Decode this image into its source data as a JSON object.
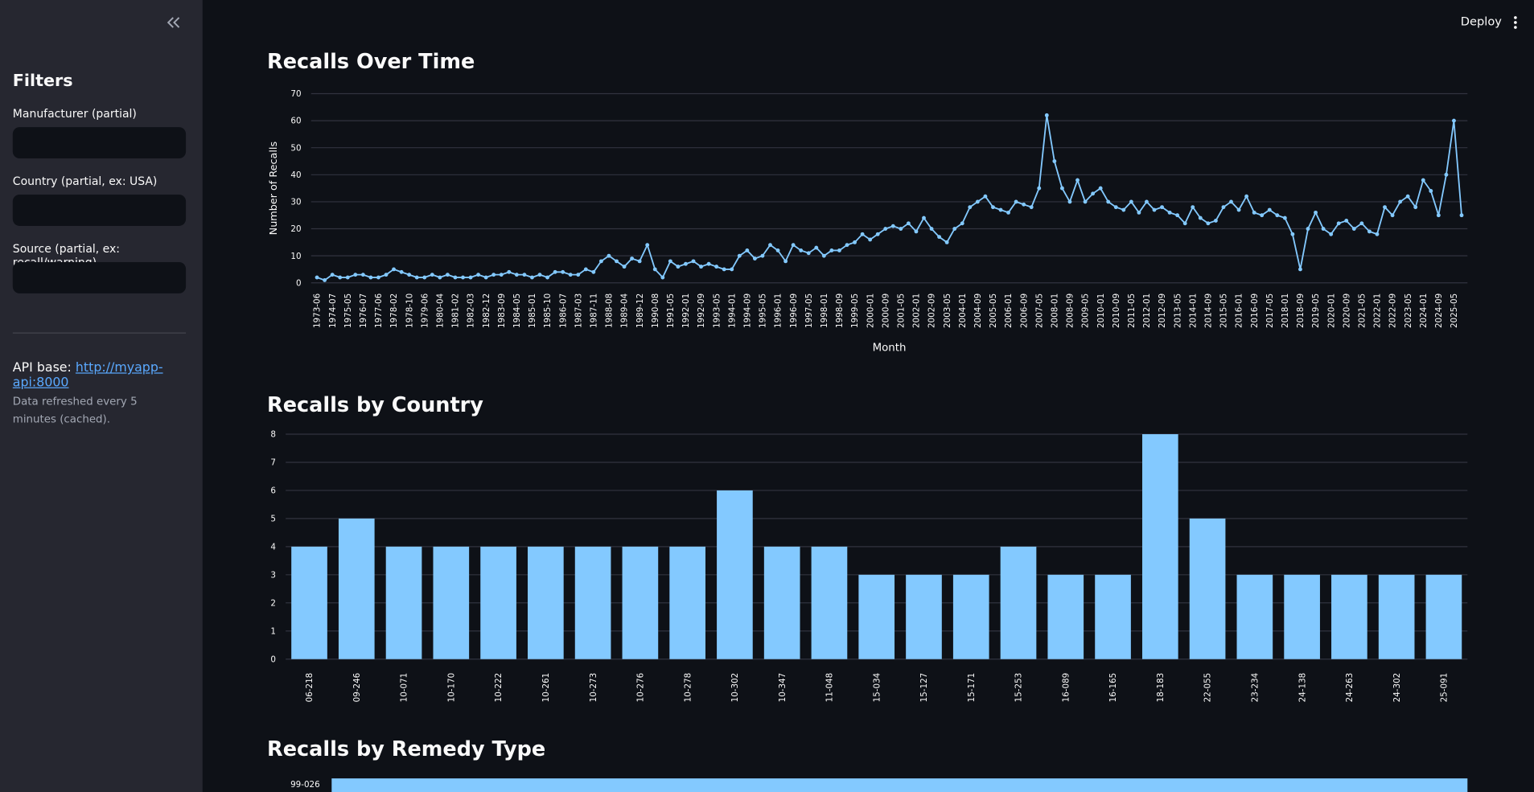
{
  "header": {
    "deploy": "Deploy"
  },
  "sidebar": {
    "title": "Filters",
    "filters": [
      "Manufacturer (partial)",
      "Country (partial, ex: USA)",
      "Source (partial, ex: recall/warning)"
    ],
    "api_label": "API base:",
    "api_url": "http://myapp-api:8000",
    "note": "Data refreshed every 5 minutes (cached)."
  },
  "chart_data": [
    {
      "type": "line",
      "title": "Recalls Over Time",
      "x_label": "Month",
      "y_label": "Number of Recalls",
      "color": "#83c9ff",
      "grid": true,
      "categories": [
        "1973-06",
        null,
        "1974-07",
        null,
        "1975-05",
        null,
        "1976-07",
        null,
        "1977-06",
        null,
        "1978-02",
        null,
        "1978-10",
        null,
        "1979-06",
        null,
        "1980-04",
        null,
        "1981-02",
        null,
        "1982-03",
        null,
        "1982-12",
        null,
        "1983-09",
        null,
        "1984-05",
        null,
        "1985-01",
        null,
        "1985-10",
        null,
        "1986-07",
        null,
        "1987-03",
        null,
        "1987-11",
        null,
        "1988-08",
        null,
        "1989-04",
        null,
        "1989-12",
        null,
        "1990-08",
        null,
        "1991-05",
        null,
        "1992-01",
        null,
        "1992-09",
        null,
        "1993-05",
        null,
        "1994-01",
        null,
        "1994-09",
        null,
        "1995-05",
        null,
        "1996-01",
        null,
        "1996-09",
        null,
        "1997-05",
        null,
        "1998-01",
        null,
        "1998-09",
        null,
        "1999-05",
        null,
        "2000-01",
        null,
        "2000-09",
        null,
        "2001-05",
        null,
        "2002-01",
        null,
        "2002-09",
        null,
        "2003-05",
        null,
        "2004-01",
        null,
        "2004-09",
        null,
        "2005-05",
        null,
        "2006-01",
        null,
        "2006-09",
        null,
        "2007-05",
        null,
        "2008-01",
        null,
        "2008-09",
        null,
        "2009-05",
        null,
        "2010-01",
        null,
        "2010-09",
        null,
        "2011-05",
        null,
        "2012-01",
        null,
        "2012-09",
        null,
        "2013-05",
        null,
        "2014-01",
        null,
        "2014-09",
        null,
        "2015-05",
        null,
        "2016-01",
        null,
        "2016-09",
        null,
        "2017-05",
        null,
        "2018-01",
        null,
        "2018-09",
        null,
        "2019-05",
        null,
        "2020-01",
        null,
        "2020-09",
        null,
        "2021-05",
        null,
        "2022-01",
        null,
        "2022-09",
        null,
        "2023-05",
        null,
        "2024-01",
        null,
        "2024-09",
        null,
        "2025-05",
        null
      ],
      "values": [
        2,
        1,
        3,
        2,
        2,
        3,
        3,
        2,
        2,
        3,
        5,
        4,
        3,
        2,
        2,
        3,
        2,
        3,
        2,
        2,
        2,
        3,
        2,
        3,
        3,
        4,
        3,
        3,
        2,
        3,
        2,
        4,
        4,
        3,
        3,
        5,
        4,
        8,
        10,
        8,
        6,
        9,
        8,
        14,
        5,
        2,
        8,
        6,
        7,
        8,
        6,
        7,
        6,
        5,
        5,
        10,
        12,
        9,
        10,
        14,
        12,
        8,
        14,
        12,
        11,
        13,
        10,
        12,
        12,
        14,
        15,
        18,
        16,
        18,
        20,
        21,
        20,
        22,
        19,
        24,
        20,
        17,
        15,
        20,
        22,
        28,
        30,
        32,
        28,
        27,
        26,
        30,
        29,
        28,
        35,
        62,
        45,
        35,
        30,
        38,
        30,
        33,
        35,
        30,
        28,
        27,
        30,
        26,
        30,
        27,
        28,
        26,
        25,
        22,
        28,
        24,
        22,
        23,
        28,
        30,
        27,
        32,
        26,
        25,
        27,
        25,
        24,
        18,
        5,
        20,
        26,
        20,
        18,
        22,
        23,
        20,
        22,
        19,
        18,
        28,
        25,
        30,
        32,
        28,
        38,
        34,
        25,
        40,
        60,
        25
      ],
      "ylim": [
        -1,
        71
      ],
      "yticks": [
        0,
        10,
        20,
        30,
        40,
        50,
        60,
        70
      ]
    },
    {
      "type": "bar",
      "title": "Recalls by Country",
      "color": "#83c9ff",
      "grid": true,
      "categories": [
        "06-218",
        "09-246",
        "10-071",
        "10-170",
        "10-222",
        "10-261",
        "10-273",
        "10-276",
        "10-278",
        "10-302",
        "10-347",
        "11-048",
        "15-034",
        "15-127",
        "15-171",
        "15-253",
        "16-089",
        "16-165",
        "18-183",
        "22-055",
        "23-234",
        "24-138",
        "24-263",
        "24-302",
        "25-091"
      ],
      "values": [
        4,
        5,
        4,
        4,
        4,
        4,
        4,
        4,
        4,
        6,
        4,
        4,
        3,
        3,
        3,
        4,
        3,
        3,
        8,
        5,
        3,
        3,
        3,
        3,
        3
      ],
      "ylim": [
        0,
        8
      ],
      "yticks": [
        0,
        1,
        2,
        3,
        4,
        5,
        6,
        7,
        8
      ]
    },
    {
      "type": "barh",
      "title": "Recalls by Remedy Type",
      "color": "#83c9ff",
      "categories": [
        "99-026"
      ],
      "values": [
        1
      ],
      "xlim": [
        0,
        1
      ]
    }
  ]
}
